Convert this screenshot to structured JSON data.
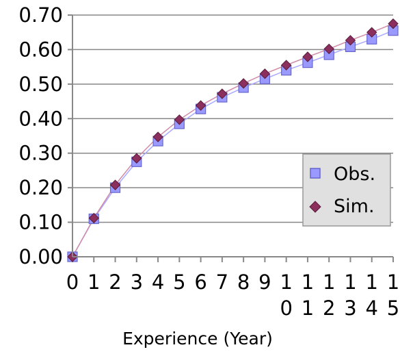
{
  "chart_data": {
    "type": "line",
    "title": "",
    "xlabel": "Experience (Year)",
    "ylabel": "",
    "x": [
      0,
      1,
      2,
      3,
      4,
      5,
      6,
      7,
      8,
      9,
      10,
      11,
      12,
      13,
      14,
      15
    ],
    "x_tick_labels": [
      [
        "0"
      ],
      [
        "1"
      ],
      [
        "2"
      ],
      [
        "3"
      ],
      [
        "4"
      ],
      [
        "5"
      ],
      [
        "6"
      ],
      [
        "7"
      ],
      [
        "8"
      ],
      [
        "9"
      ],
      [
        "1",
        "0"
      ],
      [
        "1",
        "1"
      ],
      [
        "1",
        "2"
      ],
      [
        "1",
        "3"
      ],
      [
        "1",
        "4"
      ],
      [
        "1",
        "5"
      ]
    ],
    "y_tick_labels": [
      "0.00",
      "0.10",
      "0.20",
      "0.30",
      "0.40",
      "0.50",
      "0.60",
      "0.70"
    ],
    "ylim": [
      0,
      0.7
    ],
    "y_grid": true,
    "legend": {
      "placement": "right"
    },
    "series": [
      {
        "name": "Obs.",
        "marker": "square",
        "color": "#9999ff",
        "edge": "#6666cc",
        "values": [
          0.0,
          0.11,
          0.2,
          0.275,
          0.335,
          0.385,
          0.428,
          0.462,
          0.49,
          0.515,
          0.54,
          0.562,
          0.585,
          0.608,
          0.63,
          0.655
        ]
      },
      {
        "name": "Sim.",
        "marker": "diamond",
        "color": "#8b2f5e",
        "edge": "#5a1a3a",
        "values": [
          0.0,
          0.112,
          0.208,
          0.285,
          0.347,
          0.397,
          0.438,
          0.472,
          0.502,
          0.53,
          0.555,
          0.579,
          0.602,
          0.627,
          0.65,
          0.675
        ]
      }
    ]
  }
}
